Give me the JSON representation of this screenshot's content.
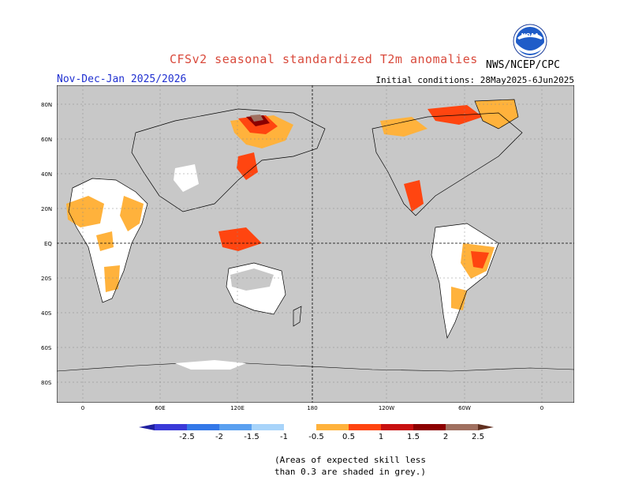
{
  "title": "CFSv2 seasonal standardized T2m anomalies",
  "period": "Nov-Dec-Jan 2025/2026",
  "initial_conditions": "Initial conditions: 28May2025-6Jun2025",
  "agency": "NWS/NCEP/CPC",
  "logo_text": "NOAA",
  "skill_note_line1": "(Areas of expected skill less",
  "skill_note_line2": "than 0.3 are shaded in grey.)",
  "map": {
    "lat_labels": [
      "80N",
      "60N",
      "40N",
      "20N",
      "EQ",
      "20S",
      "40S",
      "60S",
      "80S"
    ],
    "lon_labels": [
      "0",
      "60E",
      "120E",
      "180",
      "120W",
      "60W",
      "0"
    ],
    "background_grey": "#c8c8c8"
  },
  "legend": {
    "labels": [
      "-2.5",
      "-2",
      "-1.5",
      "-1",
      "-0.5",
      "0.5",
      "1",
      "1.5",
      "2",
      "2.5"
    ],
    "colors": [
      "#2020a0",
      "#3a3ad8",
      "#3478e8",
      "#5aa0f0",
      "#a8d4fa",
      "#ffffff",
      "#ffb23c",
      "#ff4510",
      "#c81010",
      "#8c0000",
      "#a07060",
      "#603020"
    ]
  }
}
